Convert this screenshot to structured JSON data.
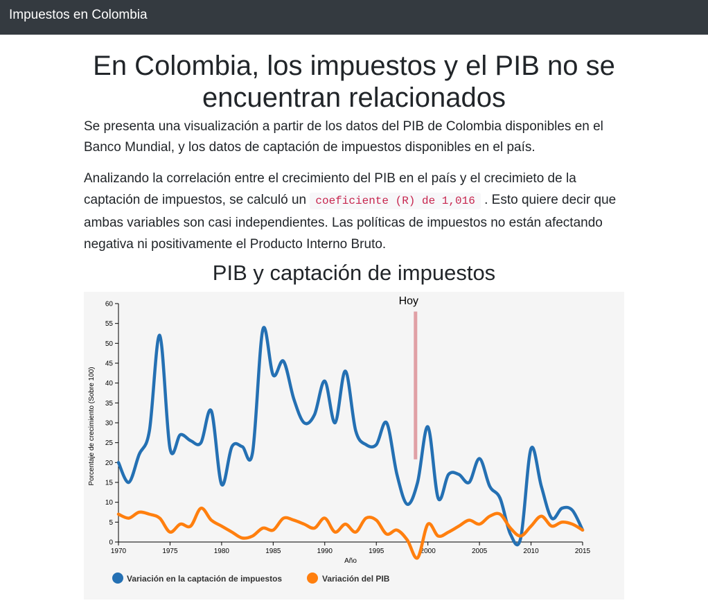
{
  "navbar": {
    "brand": "Impuestos en Colombia"
  },
  "main": {
    "title_line1": "En Colombia, los impuestos y el PIB no se",
    "title_line2": "encuentran relacionados",
    "paragraph1_line1": "Se presenta una visualización a partir de los datos del PIB de Colombia disponibles en el",
    "paragraph1_line2": "Banco Mundial, y los datos de captación de impuestos disponibles en el país.",
    "paragraph2_line1": "Analizando la correlación entre el crecimiento del PIB en el país y el crecimieto de la",
    "paragraph2_line2_before": "captación de impuestos, se calculó un",
    "coefficient": "coeficiente (R) de 1,016",
    "paragraph2_line2_after": ". Esto quiere decir que",
    "paragraph2_line3": "ambas variables son casi independientes. Las políticas de impuestos no están afectando",
    "paragraph2_line4": "negativa ni positivamente el Producto Interno Bruto.",
    "chart_heading": "PIB y captación de impuestos"
  },
  "colors": {
    "taxes": "#2470b3",
    "gdp": "#ff7f0e",
    "marker": "#e0a0a5",
    "navbar": "#343a40"
  },
  "chart_data": {
    "type": "line",
    "title": "PIB y captación de impuestos",
    "xlabel": "Año",
    "ylabel": "Porcentaje de crecimiento (Sobre 100)",
    "xlim": [
      1970,
      2015
    ],
    "ylim": [
      0,
      60
    ],
    "x_ticks": [
      1970,
      1975,
      1980,
      1985,
      1990,
      1995,
      2000,
      2005,
      2010,
      2015
    ],
    "y_ticks": [
      0,
      5,
      10,
      15,
      20,
      25,
      30,
      35,
      40,
      45,
      50,
      55,
      60
    ],
    "x": [
      1970,
      1971,
      1972,
      1973,
      1974,
      1975,
      1976,
      1977,
      1978,
      1979,
      1980,
      1981,
      1982,
      1983,
      1984,
      1985,
      1986,
      1987,
      1988,
      1989,
      1990,
      1991,
      1992,
      1993,
      1994,
      1995,
      1996,
      1997,
      1998,
      1999,
      2000,
      2001,
      2002,
      2003,
      2004,
      2005,
      2006,
      2007,
      2008,
      2009,
      2010,
      2011,
      2012,
      2013,
      2014,
      2015
    ],
    "series": [
      {
        "name": "Variación en la captación de impuestos",
        "values": [
          20,
          15,
          22,
          28,
          52,
          23.5,
          27,
          25.5,
          25,
          33,
          14.5,
          24,
          24,
          22.5,
          53.5,
          42,
          45.5,
          36,
          30,
          32,
          40.5,
          30,
          43,
          28,
          24.5,
          24.5,
          30,
          17,
          9.5,
          15,
          29,
          11,
          17,
          17,
          15,
          21,
          14,
          11,
          2,
          1,
          23.5,
          14,
          6,
          8.5,
          8,
          3
        ]
      },
      {
        "name": "Variación del PIB",
        "values": [
          7,
          6,
          7.5,
          7,
          6,
          2.5,
          4.5,
          4,
          8.5,
          5.5,
          4,
          2.5,
          1,
          1.5,
          3.5,
          3,
          6,
          5.5,
          4.5,
          3.5,
          6,
          2.5,
          4.5,
          2.5,
          6,
          5.5,
          2,
          3,
          0.5,
          -4,
          4.5,
          1.5,
          2.5,
          4,
          5.5,
          4.5,
          6.5,
          7,
          3.5,
          1.5,
          4,
          6.5,
          4,
          5,
          4.5,
          3
        ]
      }
    ],
    "annotations": [
      {
        "label": "Hoy",
        "x": 1998.8,
        "y_from": 20.8,
        "y_to": 58
      }
    ],
    "grid": false,
    "legend": "bottom-left"
  }
}
